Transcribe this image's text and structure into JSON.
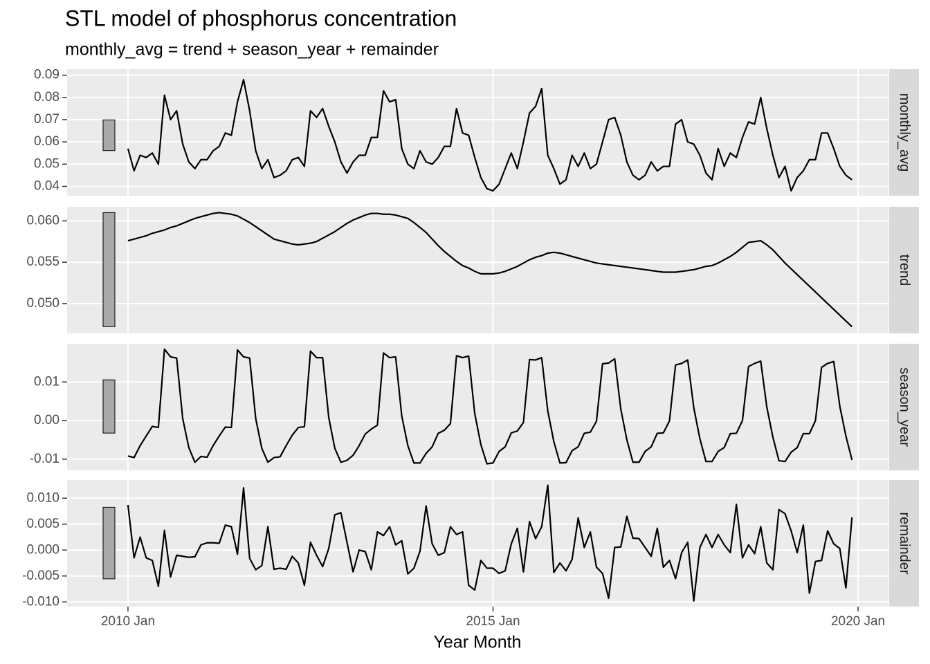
{
  "chart_data": {
    "type": "line",
    "title": "STL model of phosphorus concentration",
    "subtitle": "monthly_avg = trend + season_year + remainder",
    "x_label": "Year Month",
    "color": "#000000",
    "grid": true,
    "x": [
      "2010 Jan",
      "2010 Feb",
      "2010 Mar",
      "2010 Apr",
      "2010 May",
      "2010 Jun",
      "2010 Jul",
      "2010 Aug",
      "2010 Sep",
      "2010 Oct",
      "2010 Nov",
      "2010 Dec",
      "2011 Jan",
      "2011 Feb",
      "2011 Mar",
      "2011 Apr",
      "2011 May",
      "2011 Jun",
      "2011 Jul",
      "2011 Aug",
      "2011 Sep",
      "2011 Oct",
      "2011 Nov",
      "2011 Dec",
      "2012 Jan",
      "2012 Feb",
      "2012 Mar",
      "2012 Apr",
      "2012 May",
      "2012 Jun",
      "2012 Jul",
      "2012 Aug",
      "2012 Sep",
      "2012 Oct",
      "2012 Nov",
      "2012 Dec",
      "2013 Jan",
      "2013 Feb",
      "2013 Mar",
      "2013 Apr",
      "2013 May",
      "2013 Jun",
      "2013 Jul",
      "2013 Aug",
      "2013 Sep",
      "2013 Oct",
      "2013 Nov",
      "2013 Dec",
      "2014 Jan",
      "2014 Feb",
      "2014 Mar",
      "2014 Apr",
      "2014 May",
      "2014 Jun",
      "2014 Jul",
      "2014 Aug",
      "2014 Sep",
      "2014 Oct",
      "2014 Nov",
      "2014 Dec",
      "2015 Jan",
      "2015 Feb",
      "2015 Mar",
      "2015 Apr",
      "2015 May",
      "2015 Jun",
      "2015 Jul",
      "2015 Aug",
      "2015 Sep",
      "2015 Oct",
      "2015 Nov",
      "2015 Dec",
      "2016 Jan",
      "2016 Feb",
      "2016 Mar",
      "2016 Apr",
      "2016 May",
      "2016 Jun",
      "2016 Jul",
      "2016 Aug",
      "2016 Sep",
      "2016 Oct",
      "2016 Nov",
      "2016 Dec",
      "2017 Jan",
      "2017 Feb",
      "2017 Mar",
      "2017 Apr",
      "2017 May",
      "2017 Jun",
      "2017 Jul",
      "2017 Aug",
      "2017 Sep",
      "2017 Oct",
      "2017 Nov",
      "2017 Dec",
      "2018 Jan",
      "2018 Feb",
      "2018 Mar",
      "2018 Apr",
      "2018 May",
      "2018 Jun",
      "2018 Jul",
      "2018 Aug",
      "2018 Sep",
      "2018 Oct",
      "2018 Nov",
      "2018 Dec",
      "2019 Jan",
      "2019 Feb",
      "2019 Mar",
      "2019 Apr",
      "2019 May",
      "2019 Jun",
      "2019 Jul",
      "2019 Aug",
      "2019 Sep",
      "2019 Oct",
      "2019 Nov",
      "2019 Dec"
    ],
    "xlim": [
      "2009 Mar",
      "2020 Jun"
    ],
    "xticks": [
      "2010 Jan",
      "2015 Jan",
      "2020 Jan"
    ],
    "facets": [
      {
        "name": "monthly_avg",
        "ylim": [
          0.0358,
          0.0927
        ],
        "yticks": [
          0.04,
          0.05,
          0.06,
          0.07,
          0.08,
          0.09
        ],
        "values": [
          0.057,
          0.047,
          0.054,
          0.053,
          0.055,
          0.05,
          0.081,
          0.07,
          0.074,
          0.059,
          0.051,
          0.048,
          0.052,
          0.052,
          0.056,
          0.058,
          0.064,
          0.063,
          0.078,
          0.088,
          0.074,
          0.056,
          0.048,
          0.052,
          0.044,
          0.045,
          0.047,
          0.052,
          0.053,
          0.049,
          0.074,
          0.071,
          0.075,
          0.067,
          0.06,
          0.051,
          0.046,
          0.051,
          0.054,
          0.054,
          0.062,
          0.062,
          0.083,
          0.078,
          0.079,
          0.057,
          0.05,
          0.048,
          0.056,
          0.051,
          0.05,
          0.053,
          0.058,
          0.058,
          0.075,
          0.064,
          0.063,
          0.053,
          0.044,
          0.039,
          0.038,
          0.041,
          0.048,
          0.055,
          0.048,
          0.06,
          0.073,
          0.076,
          0.084,
          0.054,
          0.048,
          0.041,
          0.043,
          0.054,
          0.049,
          0.055,
          0.048,
          0.05,
          0.06,
          0.07,
          0.071,
          0.063,
          0.051,
          0.045,
          0.043,
          0.045,
          0.051,
          0.047,
          0.049,
          0.049,
          0.068,
          0.07,
          0.06,
          0.059,
          0.054,
          0.046,
          0.043,
          0.057,
          0.049,
          0.055,
          0.053,
          0.062,
          0.069,
          0.068,
          0.08,
          0.066,
          0.054,
          0.044,
          0.049,
          0.038,
          0.044,
          0.047,
          0.052,
          0.052,
          0.064,
          0.064,
          0.057,
          0.049,
          0.045,
          0.043
        ]
      },
      {
        "name": "trend",
        "ylim": [
          0.0464,
          0.0617
        ],
        "yticks": [
          {
            "value": 0.05,
            "label": "0.050"
          },
          {
            "value": 0.055,
            "label": "0.055"
          },
          {
            "value": 0.06,
            "label": "0.060"
          }
        ],
        "values": [
          0.0576,
          0.0578,
          0.058,
          0.0582,
          0.0585,
          0.0587,
          0.0589,
          0.0592,
          0.0594,
          0.0597,
          0.06,
          0.0603,
          0.0605,
          0.0607,
          0.0609,
          0.061,
          0.0609,
          0.0608,
          0.0606,
          0.0602,
          0.0598,
          0.0593,
          0.0588,
          0.0583,
          0.0578,
          0.0576,
          0.0574,
          0.0572,
          0.0571,
          0.0572,
          0.0573,
          0.0575,
          0.0579,
          0.0583,
          0.0587,
          0.0592,
          0.0597,
          0.0601,
          0.0604,
          0.0607,
          0.0609,
          0.0609,
          0.0608,
          0.0608,
          0.0607,
          0.0605,
          0.0603,
          0.0598,
          0.0592,
          0.0586,
          0.0578,
          0.057,
          0.0563,
          0.0557,
          0.0551,
          0.0546,
          0.0543,
          0.0539,
          0.0536,
          0.0536,
          0.0536,
          0.0537,
          0.0539,
          0.0542,
          0.0545,
          0.0549,
          0.0553,
          0.0556,
          0.0558,
          0.0561,
          0.0562,
          0.0561,
          0.0559,
          0.0557,
          0.0555,
          0.0553,
          0.0551,
          0.0549,
          0.0548,
          0.0547,
          0.0546,
          0.0545,
          0.0544,
          0.0543,
          0.0542,
          0.0541,
          0.054,
          0.0539,
          0.0538,
          0.0538,
          0.0538,
          0.0539,
          0.054,
          0.0541,
          0.0543,
          0.0545,
          0.0546,
          0.0549,
          0.0553,
          0.0557,
          0.0562,
          0.0568,
          0.0574,
          0.0575,
          0.0576,
          0.0571,
          0.0565,
          0.0557,
          0.0549,
          0.0542,
          0.0535,
          0.0528,
          0.0521,
          0.0514,
          0.0507,
          0.05,
          0.0493,
          0.0486,
          0.0479,
          0.0472
        ]
      },
      {
        "name": "season_year",
        "ylim": [
          -0.0129,
          0.0199
        ],
        "yticks": [
          -0.01,
          {
            "value": 0,
            "label": "0.00"
          },
          0.01
        ],
        "values": [
          -0.0092,
          -0.0096,
          -0.0065,
          -0.004,
          -0.0015,
          -0.0018,
          0.0185,
          0.0165,
          0.0162,
          0.0005,
          -0.007,
          -0.0108,
          -0.0093,
          -0.0095,
          -0.0065,
          -0.004,
          -0.0017,
          -0.0018,
          0.0183,
          0.0165,
          0.0162,
          0.0005,
          -0.0072,
          -0.0108,
          -0.0096,
          -0.0094,
          -0.0065,
          -0.0038,
          -0.0018,
          -0.0016,
          0.018,
          0.0163,
          0.0163,
          0.0008,
          -0.0072,
          -0.0108,
          -0.0103,
          -0.009,
          -0.0065,
          -0.0035,
          -0.0022,
          -0.0012,
          0.0175,
          0.0163,
          0.0165,
          0.0012,
          -0.0065,
          -0.011,
          -0.011,
          -0.0085,
          -0.0068,
          -0.0033,
          -0.0025,
          -0.0008,
          0.0168,
          0.0163,
          0.0167,
          0.0018,
          -0.0062,
          -0.0112,
          -0.011,
          -0.008,
          -0.0068,
          -0.0032,
          -0.0027,
          -0.0005,
          0.0158,
          0.0157,
          0.0163,
          0.0025,
          -0.0055,
          -0.011,
          -0.0109,
          -0.0078,
          -0.0068,
          -0.0033,
          -0.003,
          -0.0002,
          0.0147,
          0.0149,
          0.016,
          0.003,
          -0.005,
          -0.0108,
          -0.0108,
          -0.008,
          -0.0068,
          -0.0033,
          -0.0032,
          -0.0001,
          0.0144,
          0.0148,
          0.0157,
          0.0033,
          -0.0047,
          -0.0106,
          -0.0106,
          -0.008,
          -0.007,
          -0.0034,
          -0.0033,
          0.0,
          0.014,
          0.0148,
          0.0154,
          0.0035,
          -0.0043,
          -0.0104,
          -0.0106,
          -0.0082,
          -0.007,
          -0.0034,
          -0.0034,
          0.0,
          0.0138,
          0.0148,
          0.0153,
          0.0037,
          -0.004,
          -0.0102
        ]
      },
      {
        "name": "remainder",
        "ylim": [
          -0.0109,
          0.0135
        ],
        "yticks": [
          {
            "value": -0.01,
            "label": "-0.010"
          },
          -0.005,
          {
            "value": 0,
            "label": "0.000"
          },
          0.005,
          {
            "value": 0.01,
            "label": "0.010"
          }
        ],
        "values": [
          0.0087,
          -0.0015,
          0.0025,
          -0.0015,
          -0.002,
          -0.007,
          0.0038,
          -0.0052,
          -0.001,
          -0.0012,
          -0.0014,
          -0.0013,
          0.001,
          0.0014,
          0.0014,
          0.0013,
          0.0048,
          0.0045,
          -0.0008,
          0.012,
          -0.0016,
          -0.0038,
          -0.003,
          0.0045,
          -0.0037,
          -0.0035,
          -0.0037,
          -0.0012,
          -0.0025,
          -0.0068,
          0.0015,
          -0.001,
          -0.0032,
          0.0003,
          0.0068,
          0.0072,
          0.0015,
          -0.0042,
          0.0,
          -0.0003,
          -0.0038,
          0.0035,
          0.0028,
          0.0045,
          0.001,
          0.0018,
          -0.0046,
          -0.0035,
          -0.0002,
          0.0085,
          0.0012,
          -0.001,
          -0.0005,
          0.0045,
          0.003,
          0.0035,
          -0.0068,
          -0.0077,
          -0.002,
          -0.0035,
          -0.0035,
          -0.0045,
          -0.004,
          0.0012,
          0.0042,
          -0.0042,
          0.0055,
          0.0022,
          0.0045,
          0.0125,
          -0.0043,
          -0.0025,
          -0.004,
          -0.0018,
          0.0062,
          0.0005,
          0.0035,
          -0.0033,
          -0.0045,
          -0.0093,
          0.0005,
          0.0006,
          0.0065,
          0.0023,
          0.0022,
          0.0005,
          -0.0012,
          0.0042,
          -0.0033,
          -0.002,
          -0.0055,
          -0.0005,
          0.0015,
          -0.0098,
          0.0005,
          0.003,
          0.0005,
          0.003,
          0.001,
          -0.0005,
          0.0088,
          -0.0015,
          0.001,
          -0.0007,
          0.0045,
          -0.0025,
          -0.0038,
          0.0078,
          0.007,
          0.0037,
          -0.0005,
          0.0048,
          -0.0083,
          -0.0022,
          -0.002,
          0.0037,
          0.0012,
          0.0003,
          -0.0073,
          0.0063
        ]
      }
    ]
  }
}
